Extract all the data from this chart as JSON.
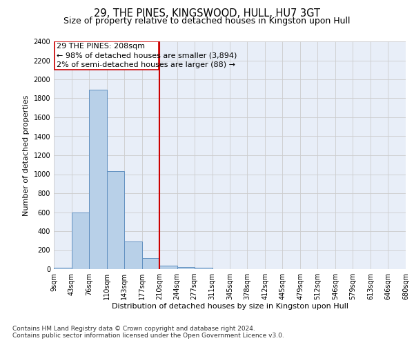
{
  "title": "29, THE PINES, KINGSWOOD, HULL, HU7 3GT",
  "subtitle": "Size of property relative to detached houses in Kingston upon Hull",
  "xlabel": "Distribution of detached houses by size in Kingston upon Hull",
  "ylabel": "Number of detached properties",
  "footnote1": "Contains HM Land Registry data © Crown copyright and database right 2024.",
  "footnote2": "Contains public sector information licensed under the Open Government Licence v3.0.",
  "annotation_line1": "29 THE PINES: 208sqm",
  "annotation_line2": "← 98% of detached houses are smaller (3,894)",
  "annotation_line3": "2% of semi-detached houses are larger (88) →",
  "property_size": 208,
  "vline_x": 210,
  "bar_color": "#b8d0e8",
  "bar_edge_color": "#6090c0",
  "vline_color": "#cc0000",
  "grid_color": "#cccccc",
  "bg_color": "#e8eef8",
  "bin_edges": [
    9,
    43,
    76,
    110,
    143,
    177,
    210,
    244,
    277,
    311,
    345,
    378,
    412,
    445,
    479,
    512,
    546,
    579,
    613,
    646,
    680
  ],
  "bin_counts": [
    15,
    600,
    1890,
    1030,
    290,
    120,
    40,
    25,
    15,
    0,
    0,
    0,
    0,
    0,
    0,
    0,
    0,
    0,
    0,
    0
  ],
  "ylim": [
    0,
    2400
  ],
  "yticks": [
    0,
    200,
    400,
    600,
    800,
    1000,
    1200,
    1400,
    1600,
    1800,
    2000,
    2200,
    2400
  ],
  "title_fontsize": 10.5,
  "subtitle_fontsize": 9,
  "axis_label_fontsize": 8,
  "tick_fontsize": 7,
  "annotation_fontsize": 8,
  "footnote_fontsize": 6.5
}
